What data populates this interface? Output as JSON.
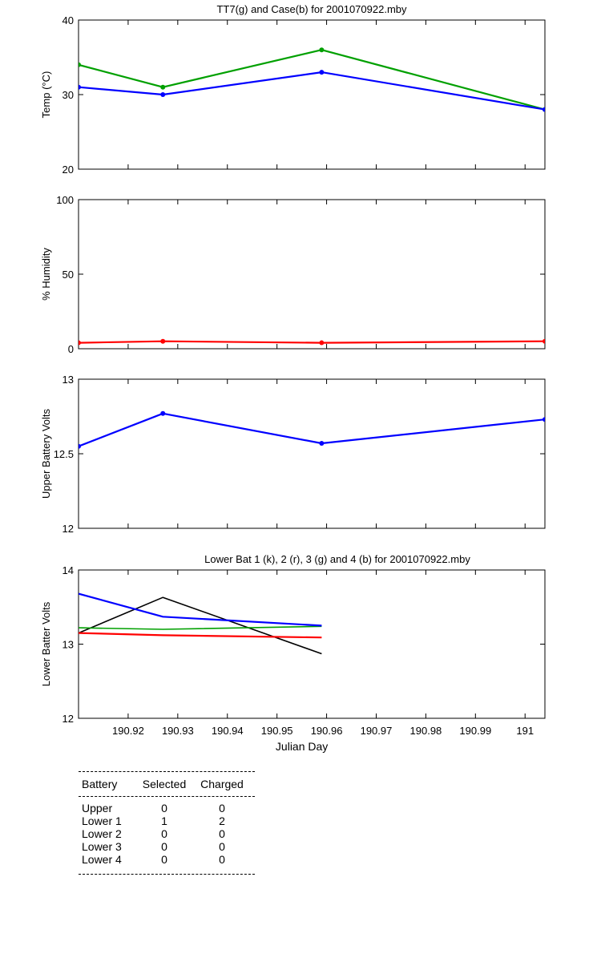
{
  "chart_data": [
    {
      "type": "line",
      "title": "TT7(g) and Case(b) for 2001070922.mby",
      "xlabel": "",
      "ylabel": "Temp (°C)",
      "xlim": [
        190.91,
        191.004
      ],
      "ylim": [
        20,
        40
      ],
      "yticks": [
        20,
        30,
        40
      ],
      "series": [
        {
          "name": "TT7",
          "color": "#00a000",
          "markers": true,
          "x": [
            190.91,
            190.927,
            190.959,
            191.004
          ],
          "y": [
            34,
            31,
            36,
            28
          ]
        },
        {
          "name": "Case",
          "color": "#0000ff",
          "markers": true,
          "x": [
            190.91,
            190.927,
            190.959,
            191.004
          ],
          "y": [
            31,
            30,
            33,
            28
          ]
        }
      ]
    },
    {
      "type": "line",
      "title": "",
      "xlabel": "",
      "ylabel": "% Humidity",
      "xlim": [
        190.91,
        191.004
      ],
      "ylim": [
        0,
        100
      ],
      "yticks": [
        0,
        50,
        100
      ],
      "series": [
        {
          "name": "Humidity",
          "color": "#ff0000",
          "markers": true,
          "x": [
            190.91,
            190.927,
            190.959,
            191.004
          ],
          "y": [
            4,
            5,
            4,
            5
          ]
        }
      ]
    },
    {
      "type": "line",
      "title": "",
      "xlabel": "",
      "ylabel": "Upper Battery Volts",
      "xlim": [
        190.91,
        191.004
      ],
      "ylim": [
        12,
        13
      ],
      "yticks": [
        12,
        12.5,
        13
      ],
      "series": [
        {
          "name": "Upper",
          "color": "#0000ff",
          "markers": true,
          "x": [
            190.91,
            190.927,
            190.959,
            191.004
          ],
          "y": [
            12.55,
            12.77,
            12.57,
            12.73
          ]
        }
      ]
    },
    {
      "type": "line",
      "title": "Lower Bat 1 (k), 2 (r), 3 (g) and 4 (b) for 2001070922.mby",
      "xlabel": "Julian Day",
      "ylabel": "Lower Batter Volts",
      "xlim": [
        190.91,
        191.004
      ],
      "ylim": [
        12,
        14
      ],
      "yticks": [
        12,
        13,
        14
      ],
      "xticks": [
        "190.92",
        "190.93",
        "190.94",
        "190.95",
        "190.96",
        "190.97",
        "190.98",
        "190.99",
        "191"
      ],
      "series": [
        {
          "name": "Lower Bat 1",
          "color": "#000000",
          "markers": false,
          "x": [
            190.91,
            190.927,
            190.959
          ],
          "y": [
            13.15,
            13.63,
            12.87
          ]
        },
        {
          "name": "Lower Bat 2",
          "color": "#ff0000",
          "markers": false,
          "x": [
            190.91,
            190.927,
            190.959
          ],
          "y": [
            13.15,
            13.12,
            13.09
          ]
        },
        {
          "name": "Lower Bat 3",
          "color": "#00a000",
          "markers": false,
          "x": [
            190.91,
            190.927,
            190.959
          ],
          "y": [
            13.22,
            13.2,
            13.24
          ]
        },
        {
          "name": "Lower Bat 4",
          "color": "#0000ff",
          "markers": false,
          "x": [
            190.91,
            190.927,
            190.959
          ],
          "y": [
            13.68,
            13.37,
            13.25
          ]
        }
      ]
    }
  ],
  "battery_table": {
    "headers": {
      "battery": "Battery",
      "selected": "Selected",
      "charged": "Charged"
    },
    "rows": [
      {
        "battery": "Upper",
        "selected": "0",
        "charged": "0"
      },
      {
        "battery": "Lower 1",
        "selected": "1",
        "charged": "2"
      },
      {
        "battery": "Lower 2",
        "selected": "0",
        "charged": "0"
      },
      {
        "battery": "Lower 3",
        "selected": "0",
        "charged": "0"
      },
      {
        "battery": "Lower 4",
        "selected": "0",
        "charged": "0"
      }
    ]
  }
}
